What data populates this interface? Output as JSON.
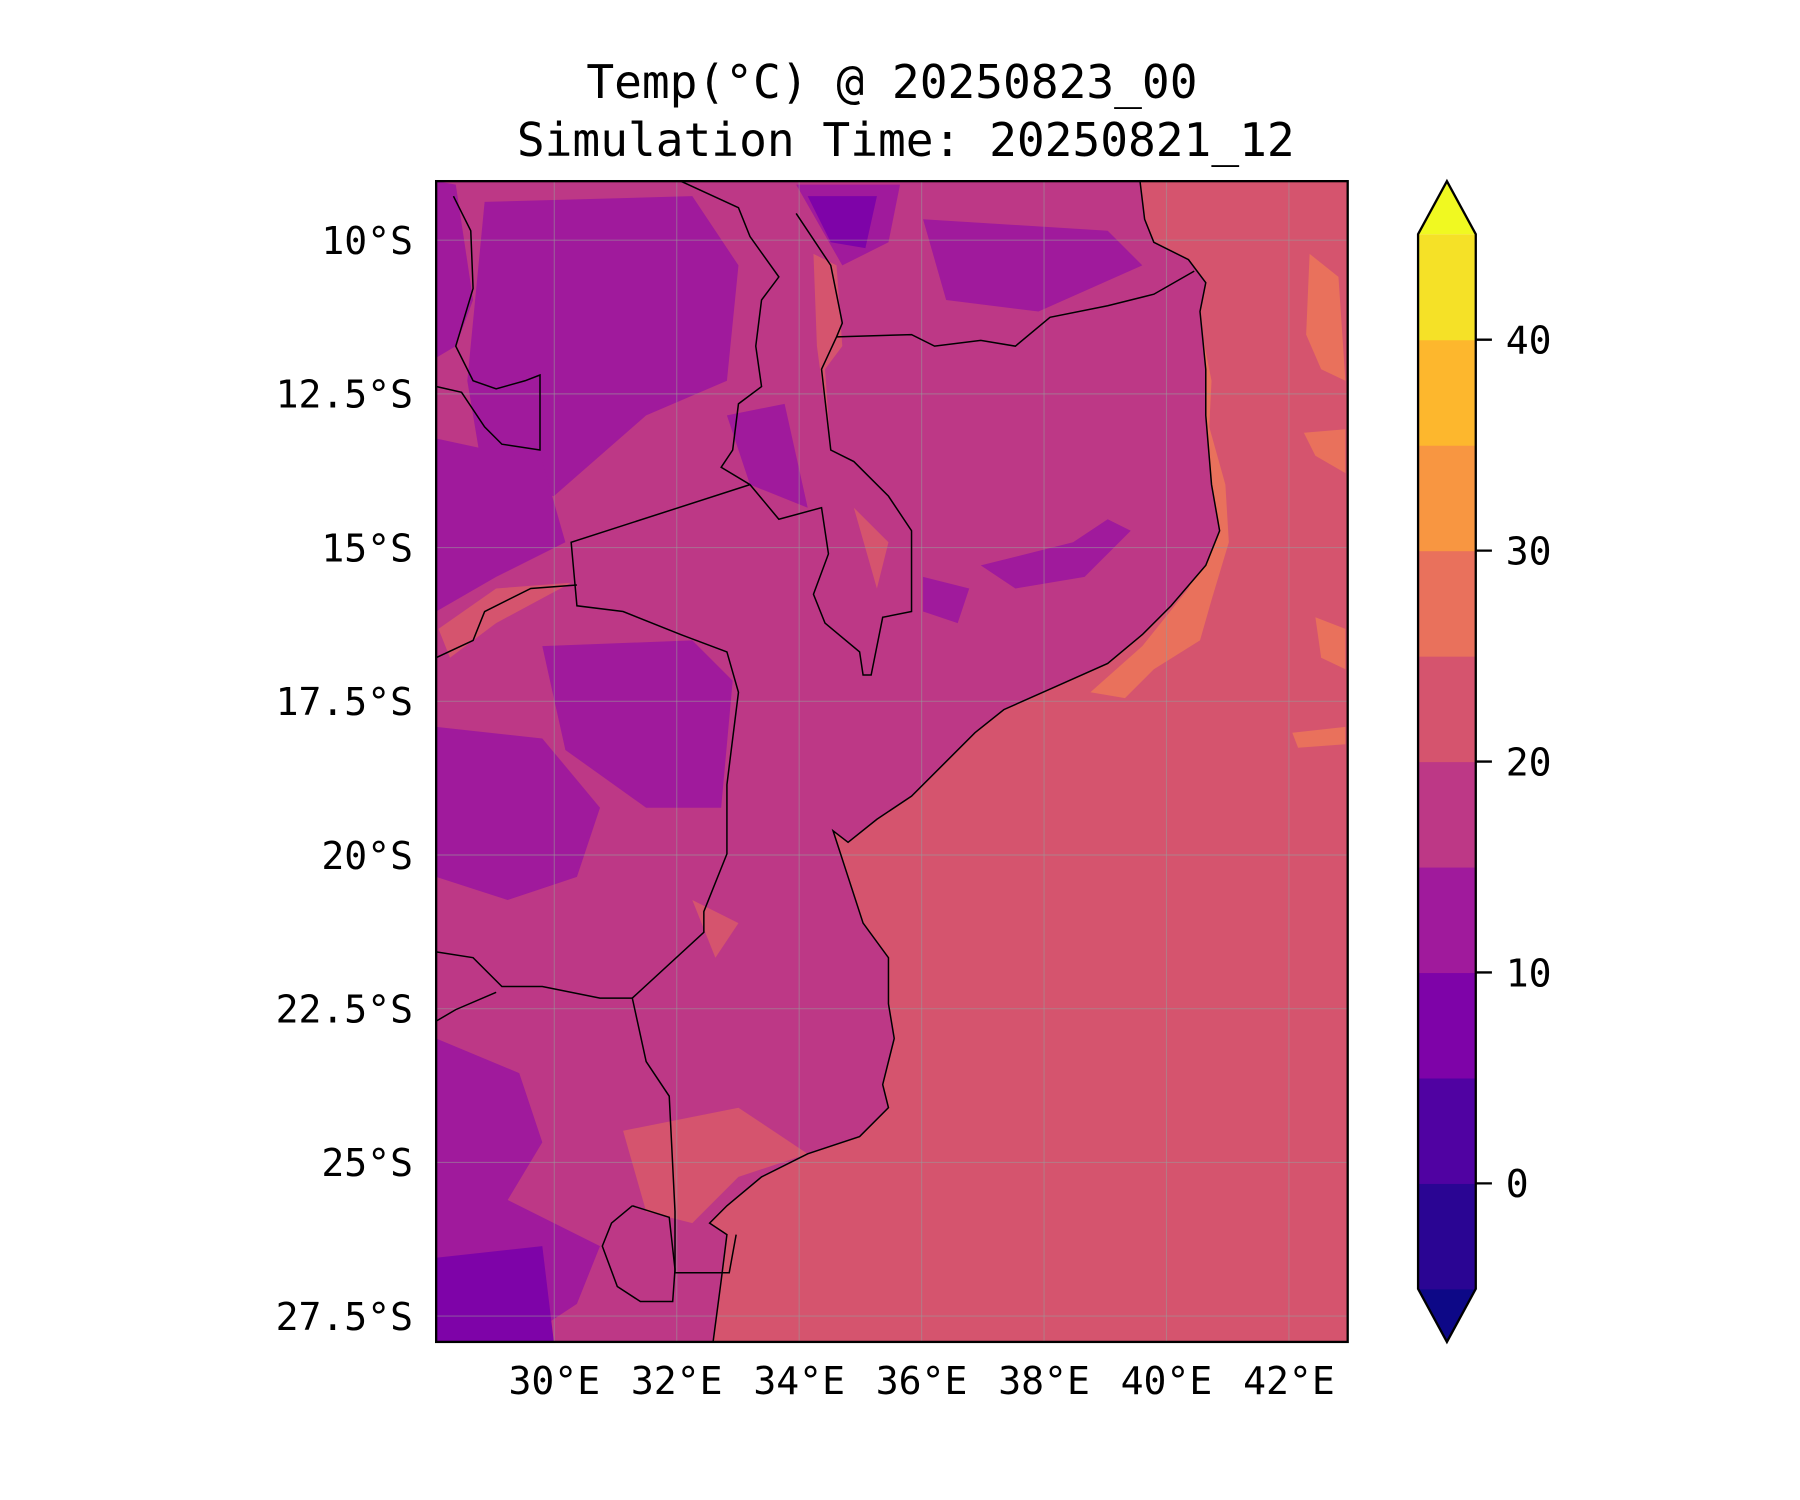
{
  "chart_data": {
    "type": "heatmap",
    "title_line1": "Temp(°C) @ 20250823_00",
    "title_line2": "Simulation Time: 20250821_12",
    "variable": "Temperature",
    "units": "°C",
    "lon_range": [
      28.07,
      42.96
    ],
    "lat_range": [
      -27.92,
      -9.04
    ],
    "xticks": [
      30,
      32,
      34,
      36,
      38,
      40,
      42
    ],
    "xtick_labels": [
      "30°E",
      "32°E",
      "34°E",
      "36°E",
      "38°E",
      "40°E",
      "42°E"
    ],
    "yticks": [
      -10,
      -12.5,
      -15,
      -17.5,
      -20,
      -22.5,
      -25,
      -27.5
    ],
    "ytick_labels": [
      "10°S",
      "12.5°S",
      "15°S",
      "17.5°S",
      "20°S",
      "22.5°S",
      "25°S",
      "27.5°S"
    ],
    "grid": true,
    "colorbar": {
      "levels": [
        -5,
        0,
        5,
        10,
        15,
        20,
        25,
        30,
        35,
        40,
        45
      ],
      "tick_values": [
        0,
        10,
        20,
        30,
        40
      ],
      "tick_labels": [
        "0",
        "10",
        "20",
        "30",
        "40"
      ],
      "extend": "both",
      "placement": "right",
      "colors": [
        "#0d0887",
        "#2a0593",
        "#5002a2",
        "#7e03a8",
        "#a01a9c",
        "#bd3886",
        "#d5546e",
        "#e9715c",
        "#f89641",
        "#fdb72d",
        "#f5e127",
        "#f0f921"
      ]
    },
    "ocean_value_band": [
      20,
      25
    ],
    "land_value_band_dominant": [
      15,
      20
    ]
  }
}
